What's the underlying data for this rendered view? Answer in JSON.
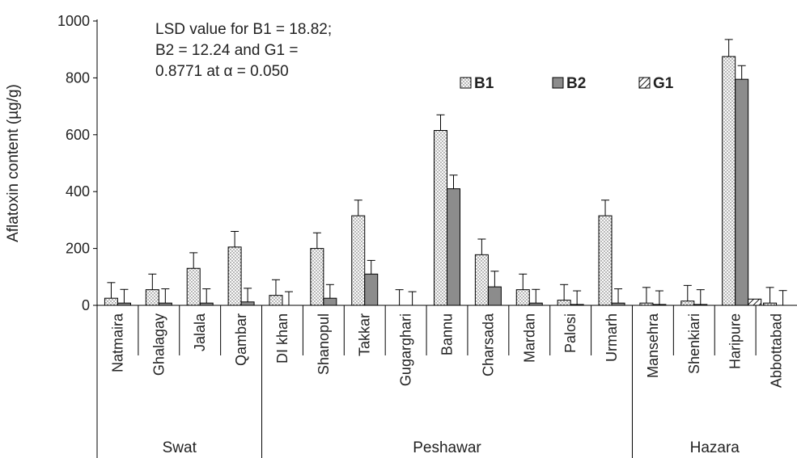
{
  "chart_data": {
    "type": "bar",
    "ylabel": "Aflatoxin content (µg/g)",
    "ylim": [
      0,
      1000
    ],
    "yticks": [
      0,
      200,
      400,
      600,
      800,
      1000
    ],
    "annotation": [
      "LSD value for B1 = 18.82;",
      "B2 = 12.24 and G1 =",
      "0.8771 at α = 0.050"
    ],
    "legend_position": "top-right",
    "categories": [
      "Natmaira",
      "Ghalagay",
      "Jalala",
      "Qambar",
      "DI khan",
      "Shanopul",
      "Takkar",
      "Gugarghari",
      "Bannu",
      "Charsada",
      "Mardan",
      "Palosi",
      "Urmarh",
      "Mansehra",
      "Shenkiari",
      "Haripure",
      "Abbottabad"
    ],
    "groups": [
      {
        "name": "Swat",
        "count": 4
      },
      {
        "name": "Peshawar",
        "count": 9
      },
      {
        "name": "Hazara",
        "count": 4
      }
    ],
    "series": [
      {
        "name": "B1",
        "color": "#f0f0f0",
        "pattern": "dots",
        "values": [
          25,
          55,
          130,
          205,
          35,
          200,
          315,
          0,
          615,
          178,
          55,
          18,
          315,
          8,
          15,
          875,
          8
        ],
        "errors": [
          55,
          55,
          55,
          55,
          55,
          55,
          55,
          55,
          55,
          55,
          55,
          55,
          55,
          55,
          55,
          60,
          55
        ]
      },
      {
        "name": "B2",
        "color": "#8c8c8c",
        "pattern": "solid",
        "values": [
          8,
          8,
          8,
          12,
          0,
          25,
          110,
          0,
          410,
          65,
          8,
          3,
          8,
          3,
          3,
          795,
          0
        ],
        "errors": [
          48,
          50,
          50,
          48,
          48,
          48,
          48,
          48,
          48,
          55,
          48,
          48,
          50,
          48,
          52,
          48,
          52
        ]
      },
      {
        "name": "G1",
        "color": "#ffffff",
        "pattern": "hatch",
        "values": [
          0,
          0,
          0,
          0,
          0,
          0,
          0,
          0,
          0,
          0,
          0,
          0,
          0,
          0,
          0,
          22,
          0
        ],
        "errors": [
          0,
          0,
          0,
          0,
          0,
          0,
          0,
          0,
          0,
          0,
          0,
          0,
          0,
          0,
          0,
          0,
          0
        ]
      }
    ]
  }
}
